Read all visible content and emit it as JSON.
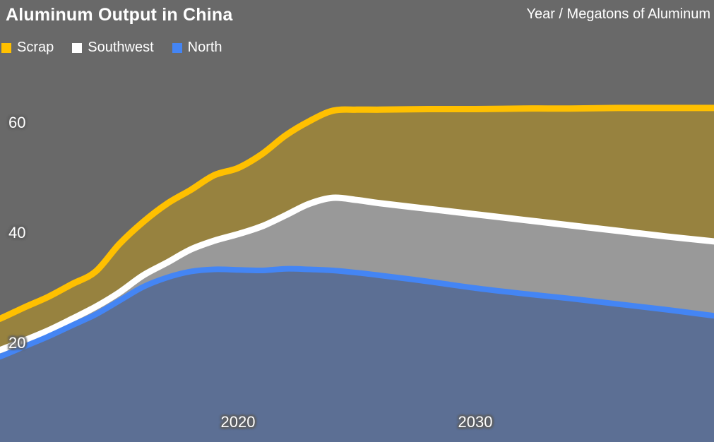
{
  "header": {
    "title": "Aluminum Output in China",
    "unit_label": "Year / Megatons of Aluminum"
  },
  "legend": {
    "items": [
      {
        "label": "Scrap",
        "color": "#FFC000"
      },
      {
        "label": "Southwest",
        "color": "#FFFFFF"
      },
      {
        "label": "North",
        "color": "#4485F4"
      }
    ]
  },
  "colors": {
    "background": "#696969",
    "scrap_fill": "#97823F",
    "southwest_fill": "#999999",
    "north_fill": "#5C6F94",
    "scrap_line": "#FFC000",
    "southwest_line": "#FFFFFF",
    "north_line": "#4485F4",
    "text": "#FFFFFF"
  },
  "axes": {
    "x_ticks": [
      {
        "label": "2020",
        "year": 2020
      },
      {
        "label": "2030",
        "year": 2030
      }
    ],
    "y_ticks": [
      {
        "label": "20",
        "value": 20
      },
      {
        "label": "40",
        "value": 40
      },
      {
        "label": "60",
        "value": 60
      }
    ],
    "x_range": [
      2010,
      2040
    ],
    "grid": false,
    "legend_position": "top-left"
  },
  "chart_data": {
    "type": "area",
    "stacked": true,
    "title": "Aluminum Output in China",
    "xlabel": "Year",
    "ylabel": "Megatons of Aluminum",
    "x": [
      2010,
      2011,
      2012,
      2013,
      2014,
      2015,
      2016,
      2017,
      2018,
      2019,
      2020,
      2021,
      2022,
      2023,
      2024,
      2025,
      2026,
      2028,
      2030,
      2032,
      2034,
      2036,
      2038,
      2040
    ],
    "series": [
      {
        "name": "North",
        "values": [
          17.6,
          19.4,
          21.2,
          23.2,
          25.2,
          27.7,
          30.2,
          31.9,
          33.0,
          33.4,
          33.3,
          33.2,
          33.5,
          33.4,
          33.2,
          32.8,
          32.3,
          31.2,
          30.0,
          29.0,
          28.1,
          27.1,
          26.1,
          25.0
        ]
      },
      {
        "name": "Southwest",
        "values": [
          1.2,
          1.1,
          1.1,
          1.2,
          1.4,
          1.5,
          2.1,
          2.7,
          4.0,
          5.2,
          6.5,
          8.0,
          9.7,
          11.9,
          13.2,
          13.2,
          13.1,
          13.2,
          13.4,
          13.4,
          13.3,
          13.3,
          13.3,
          13.5
        ]
      },
      {
        "name": "Scrap",
        "values": [
          5.7,
          6.0,
          6.1,
          6.3,
          6.4,
          8.8,
          9.7,
          10.7,
          10.8,
          11.9,
          12.0,
          13.1,
          14.5,
          15.0,
          15.8,
          16.4,
          17.0,
          18.1,
          19.1,
          20.2,
          21.2,
          22.3,
          23.3,
          24.2
        ]
      }
    ],
    "stack_totals_hint": [
      24.5,
      26.5,
      28.4,
      30.7,
      33.0,
      38.0,
      42.0,
      45.3,
      47.8,
      50.5,
      51.8,
      54.3,
      57.7,
      60.3,
      62.2,
      62.4,
      62.4,
      62.5,
      62.5,
      62.6,
      62.6,
      62.7,
      62.7,
      62.7
    ],
    "ylim": [
      12,
      66
    ]
  }
}
